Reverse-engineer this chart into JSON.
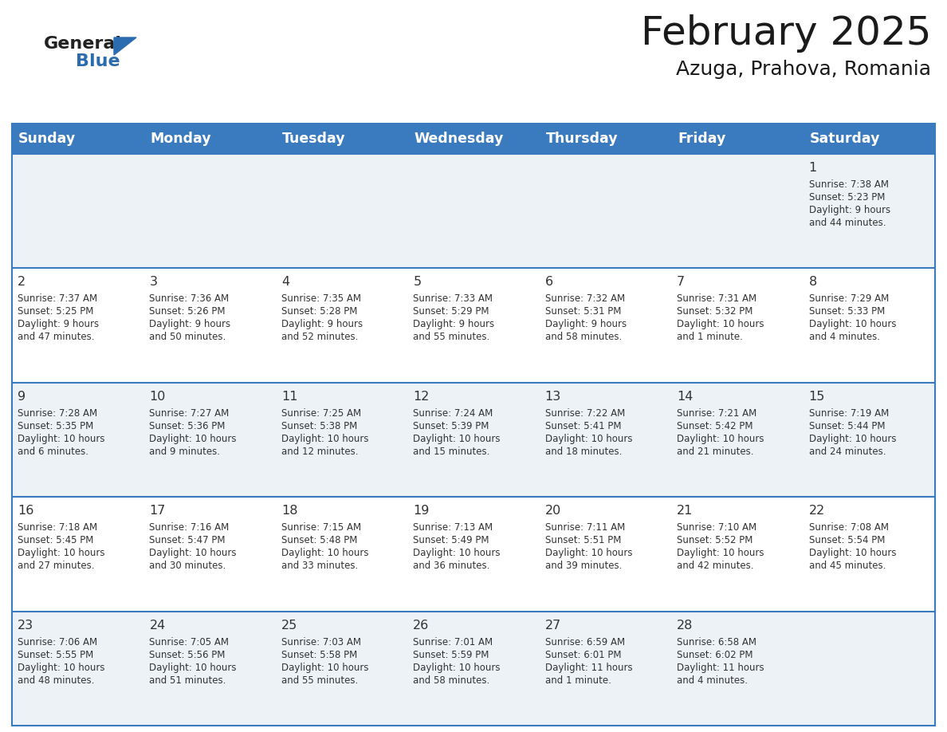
{
  "title": "February 2025",
  "subtitle": "Azuga, Prahova, Romania",
  "header_bg": "#3a7abf",
  "header_text_color": "#ffffff",
  "cell_bg_light": "#edf2f7",
  "cell_bg_white": "#ffffff",
  "day_headers": [
    "Sunday",
    "Monday",
    "Tuesday",
    "Wednesday",
    "Thursday",
    "Friday",
    "Saturday"
  ],
  "days": [
    {
      "day": 1,
      "col": 6,
      "row": 0,
      "sunrise": "7:38 AM",
      "sunset": "5:23 PM",
      "daylight_line1": "9 hours",
      "daylight_line2": "and 44 minutes."
    },
    {
      "day": 2,
      "col": 0,
      "row": 1,
      "sunrise": "7:37 AM",
      "sunset": "5:25 PM",
      "daylight_line1": "9 hours",
      "daylight_line2": "and 47 minutes."
    },
    {
      "day": 3,
      "col": 1,
      "row": 1,
      "sunrise": "7:36 AM",
      "sunset": "5:26 PM",
      "daylight_line1": "9 hours",
      "daylight_line2": "and 50 minutes."
    },
    {
      "day": 4,
      "col": 2,
      "row": 1,
      "sunrise": "7:35 AM",
      "sunset": "5:28 PM",
      "daylight_line1": "9 hours",
      "daylight_line2": "and 52 minutes."
    },
    {
      "day": 5,
      "col": 3,
      "row": 1,
      "sunrise": "7:33 AM",
      "sunset": "5:29 PM",
      "daylight_line1": "9 hours",
      "daylight_line2": "and 55 minutes."
    },
    {
      "day": 6,
      "col": 4,
      "row": 1,
      "sunrise": "7:32 AM",
      "sunset": "5:31 PM",
      "daylight_line1": "9 hours",
      "daylight_line2": "and 58 minutes."
    },
    {
      "day": 7,
      "col": 5,
      "row": 1,
      "sunrise": "7:31 AM",
      "sunset": "5:32 PM",
      "daylight_line1": "10 hours",
      "daylight_line2": "and 1 minute."
    },
    {
      "day": 8,
      "col": 6,
      "row": 1,
      "sunrise": "7:29 AM",
      "sunset": "5:33 PM",
      "daylight_line1": "10 hours",
      "daylight_line2": "and 4 minutes."
    },
    {
      "day": 9,
      "col": 0,
      "row": 2,
      "sunrise": "7:28 AM",
      "sunset": "5:35 PM",
      "daylight_line1": "10 hours",
      "daylight_line2": "and 6 minutes."
    },
    {
      "day": 10,
      "col": 1,
      "row": 2,
      "sunrise": "7:27 AM",
      "sunset": "5:36 PM",
      "daylight_line1": "10 hours",
      "daylight_line2": "and 9 minutes."
    },
    {
      "day": 11,
      "col": 2,
      "row": 2,
      "sunrise": "7:25 AM",
      "sunset": "5:38 PM",
      "daylight_line1": "10 hours",
      "daylight_line2": "and 12 minutes."
    },
    {
      "day": 12,
      "col": 3,
      "row": 2,
      "sunrise": "7:24 AM",
      "sunset": "5:39 PM",
      "daylight_line1": "10 hours",
      "daylight_line2": "and 15 minutes."
    },
    {
      "day": 13,
      "col": 4,
      "row": 2,
      "sunrise": "7:22 AM",
      "sunset": "5:41 PM",
      "daylight_line1": "10 hours",
      "daylight_line2": "and 18 minutes."
    },
    {
      "day": 14,
      "col": 5,
      "row": 2,
      "sunrise": "7:21 AM",
      "sunset": "5:42 PM",
      "daylight_line1": "10 hours",
      "daylight_line2": "and 21 minutes."
    },
    {
      "day": 15,
      "col": 6,
      "row": 2,
      "sunrise": "7:19 AM",
      "sunset": "5:44 PM",
      "daylight_line1": "10 hours",
      "daylight_line2": "and 24 minutes."
    },
    {
      "day": 16,
      "col": 0,
      "row": 3,
      "sunrise": "7:18 AM",
      "sunset": "5:45 PM",
      "daylight_line1": "10 hours",
      "daylight_line2": "and 27 minutes."
    },
    {
      "day": 17,
      "col": 1,
      "row": 3,
      "sunrise": "7:16 AM",
      "sunset": "5:47 PM",
      "daylight_line1": "10 hours",
      "daylight_line2": "and 30 minutes."
    },
    {
      "day": 18,
      "col": 2,
      "row": 3,
      "sunrise": "7:15 AM",
      "sunset": "5:48 PM",
      "daylight_line1": "10 hours",
      "daylight_line2": "and 33 minutes."
    },
    {
      "day": 19,
      "col": 3,
      "row": 3,
      "sunrise": "7:13 AM",
      "sunset": "5:49 PM",
      "daylight_line1": "10 hours",
      "daylight_line2": "and 36 minutes."
    },
    {
      "day": 20,
      "col": 4,
      "row": 3,
      "sunrise": "7:11 AM",
      "sunset": "5:51 PM",
      "daylight_line1": "10 hours",
      "daylight_line2": "and 39 minutes."
    },
    {
      "day": 21,
      "col": 5,
      "row": 3,
      "sunrise": "7:10 AM",
      "sunset": "5:52 PM",
      "daylight_line1": "10 hours",
      "daylight_line2": "and 42 minutes."
    },
    {
      "day": 22,
      "col": 6,
      "row": 3,
      "sunrise": "7:08 AM",
      "sunset": "5:54 PM",
      "daylight_line1": "10 hours",
      "daylight_line2": "and 45 minutes."
    },
    {
      "day": 23,
      "col": 0,
      "row": 4,
      "sunrise": "7:06 AM",
      "sunset": "5:55 PM",
      "daylight_line1": "10 hours",
      "daylight_line2": "and 48 minutes."
    },
    {
      "day": 24,
      "col": 1,
      "row": 4,
      "sunrise": "7:05 AM",
      "sunset": "5:56 PM",
      "daylight_line1": "10 hours",
      "daylight_line2": "and 51 minutes."
    },
    {
      "day": 25,
      "col": 2,
      "row": 4,
      "sunrise": "7:03 AM",
      "sunset": "5:58 PM",
      "daylight_line1": "10 hours",
      "daylight_line2": "and 55 minutes."
    },
    {
      "day": 26,
      "col": 3,
      "row": 4,
      "sunrise": "7:01 AM",
      "sunset": "5:59 PM",
      "daylight_line1": "10 hours",
      "daylight_line2": "and 58 minutes."
    },
    {
      "day": 27,
      "col": 4,
      "row": 4,
      "sunrise": "6:59 AM",
      "sunset": "6:01 PM",
      "daylight_line1": "11 hours",
      "daylight_line2": "and 1 minute."
    },
    {
      "day": 28,
      "col": 5,
      "row": 4,
      "sunrise": "6:58 AM",
      "sunset": "6:02 PM",
      "daylight_line1": "11 hours",
      "daylight_line2": "and 4 minutes."
    }
  ],
  "num_rows": 5,
  "num_cols": 7,
  "line_color": "#3a7abf",
  "text_color": "#333333",
  "logo_general_color": "#222222",
  "logo_blue_color": "#2b6cb0",
  "logo_triangle_color": "#2b6cb0"
}
